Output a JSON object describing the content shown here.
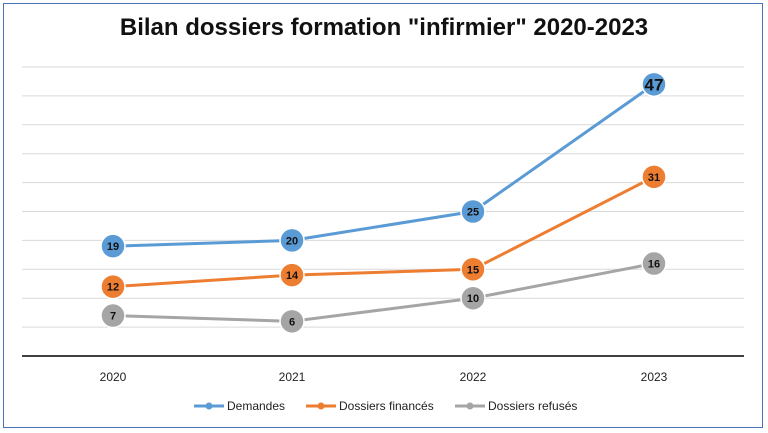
{
  "chart_data": {
    "type": "line",
    "title": "Bilan dossiers formation \"infirmier\" 2020-2023",
    "xlabel": "",
    "ylabel": "",
    "categories": [
      "2020",
      "2021",
      "2022",
      "2023"
    ],
    "ylim": [
      0,
      50
    ],
    "grid": true,
    "legend_position": "bottom",
    "series": [
      {
        "name": "Demandes",
        "values": [
          19,
          20,
          25,
          47
        ],
        "color": "#5b9bd5"
      },
      {
        "name": "Dossiers financés",
        "values": [
          12,
          14,
          15,
          31
        ],
        "color": "#ed7d31"
      },
      {
        "name": "Dossiers refusés",
        "values": [
          7,
          6,
          10,
          16
        ],
        "color": "#a5a5a5"
      }
    ]
  }
}
